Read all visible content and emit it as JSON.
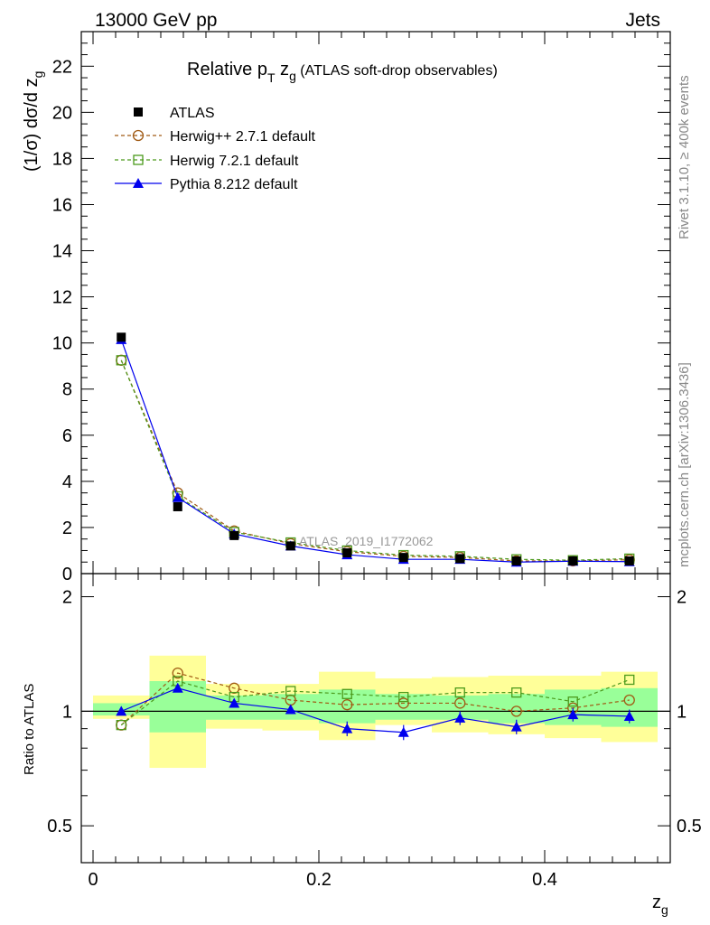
{
  "header": {
    "left": "13000 GeV pp",
    "right": "Jets"
  },
  "side_labels": {
    "rivet": "Rivet 3.1.10, ≥ 400k events",
    "mcplots": "mcplots.cern.ch [arXiv:1306.3436]"
  },
  "chart_data": {
    "type": "line",
    "title_main": "Relative p",
    "title_sub_T": "T",
    "title_z": " z",
    "title_sub_g": "g",
    "title_rest": " (ATLAS soft-drop observables)",
    "ylabel": "(1/σ) dσ/d z",
    "ylabel_sub": "g",
    "xlabel": "z",
    "xlabel_sub": "g",
    "watermark": "ATLAS_2019_I1772062",
    "xlim": [
      0,
      0.5
    ],
    "ylim": [
      0,
      23.5
    ],
    "x_ticks": [
      "0",
      "0.2",
      "0.4"
    ],
    "x_tick_values": [
      0,
      0.2,
      0.4
    ],
    "y_ticks": [
      "0",
      "2",
      "4",
      "6",
      "8",
      "10",
      "12",
      "14",
      "16",
      "18",
      "20",
      "22"
    ],
    "y_tick_values": [
      0,
      2,
      4,
      6,
      8,
      10,
      12,
      14,
      16,
      18,
      20,
      22
    ],
    "x": [
      0.025,
      0.075,
      0.125,
      0.175,
      0.225,
      0.275,
      0.325,
      0.375,
      0.425,
      0.475
    ],
    "series": [
      {
        "name": "ATLAS",
        "legend": "ATLAS",
        "color": "#000000",
        "marker": "square-filled",
        "dashed": false,
        "line": false,
        "values": [
          10.25,
          2.9,
          1.65,
          1.2,
          0.9,
          0.7,
          0.65,
          0.55,
          0.55,
          0.55
        ]
      },
      {
        "name": "Herwig++",
        "legend": "Herwig++ 2.7.1 default",
        "color": "#a05a14",
        "marker": "circle-open",
        "dashed": true,
        "line": true,
        "values": [
          9.25,
          3.5,
          1.85,
          1.3,
          0.95,
          0.75,
          0.7,
          0.55,
          0.55,
          0.6
        ]
      },
      {
        "name": "Herwig7",
        "legend": "Herwig 7.2.1 default",
        "color": "#4c9a1c",
        "marker": "square-open",
        "dashed": true,
        "line": true,
        "values": [
          9.25,
          3.35,
          1.8,
          1.35,
          1.0,
          0.8,
          0.75,
          0.62,
          0.58,
          0.65
        ]
      },
      {
        "name": "Pythia",
        "legend": "Pythia 8.212 default",
        "color": "#0000ee",
        "marker": "triangle-filled",
        "dashed": false,
        "line": true,
        "values": [
          10.15,
          3.3,
          1.72,
          1.2,
          0.82,
          0.62,
          0.62,
          0.5,
          0.54,
          0.52
        ]
      }
    ],
    "ratio": {
      "ylabel": "Ratio to ATLAS",
      "ylim": [
        0.4,
        2.3
      ],
      "log": true,
      "y_ticks": [
        "0.5",
        "1",
        "2"
      ],
      "y_tick_values": [
        0.5,
        1,
        2
      ],
      "bands": [
        {
          "x0": 0.0,
          "x1": 0.05,
          "yellow": [
            0.955,
            1.1
          ],
          "green": [
            0.975,
            1.05
          ]
        },
        {
          "x0": 0.05,
          "x1": 0.1,
          "yellow": [
            0.71,
            1.4
          ],
          "green": [
            0.88,
            1.2
          ]
        },
        {
          "x0": 0.1,
          "x1": 0.15,
          "yellow": [
            0.9,
            1.18
          ],
          "green": [
            0.95,
            1.1
          ]
        },
        {
          "x0": 0.15,
          "x1": 0.2,
          "yellow": [
            0.89,
            1.18
          ],
          "green": [
            0.95,
            1.11
          ]
        },
        {
          "x0": 0.2,
          "x1": 0.25,
          "yellow": [
            0.84,
            1.27
          ],
          "green": [
            0.93,
            1.14
          ]
        },
        {
          "x0": 0.25,
          "x1": 0.3,
          "yellow": [
            0.92,
            1.22
          ],
          "green": [
            0.95,
            1.11
          ]
        },
        {
          "x0": 0.3,
          "x1": 0.35,
          "yellow": [
            0.88,
            1.23
          ],
          "green": [
            0.95,
            1.1
          ]
        },
        {
          "x0": 0.35,
          "x1": 0.4,
          "yellow": [
            0.87,
            1.24
          ],
          "green": [
            0.93,
            1.11
          ]
        },
        {
          "x0": 0.4,
          "x1": 0.45,
          "yellow": [
            0.85,
            1.24
          ],
          "green": [
            0.92,
            1.14
          ]
        },
        {
          "x0": 0.45,
          "x1": 0.5,
          "yellow": [
            0.83,
            1.27
          ],
          "green": [
            0.91,
            1.15
          ]
        }
      ],
      "series": [
        {
          "name": "Herwig++",
          "values": [
            0.92,
            1.26,
            1.15,
            1.07,
            1.04,
            1.05,
            1.05,
            1.0,
            1.02,
            1.07
          ]
        },
        {
          "name": "Herwig7",
          "values": [
            0.92,
            1.2,
            1.09,
            1.13,
            1.11,
            1.09,
            1.12,
            1.12,
            1.06,
            1.21
          ]
        },
        {
          "name": "Pythia",
          "values": [
            1.0,
            1.15,
            1.05,
            1.01,
            0.9,
            0.88,
            0.96,
            0.91,
            0.98,
            0.97
          ],
          "errors": [
            0.0,
            0.02,
            0.02,
            0.025,
            0.04,
            0.04,
            0.04,
            0.04,
            0.04,
            0.04
          ]
        }
      ]
    }
  }
}
